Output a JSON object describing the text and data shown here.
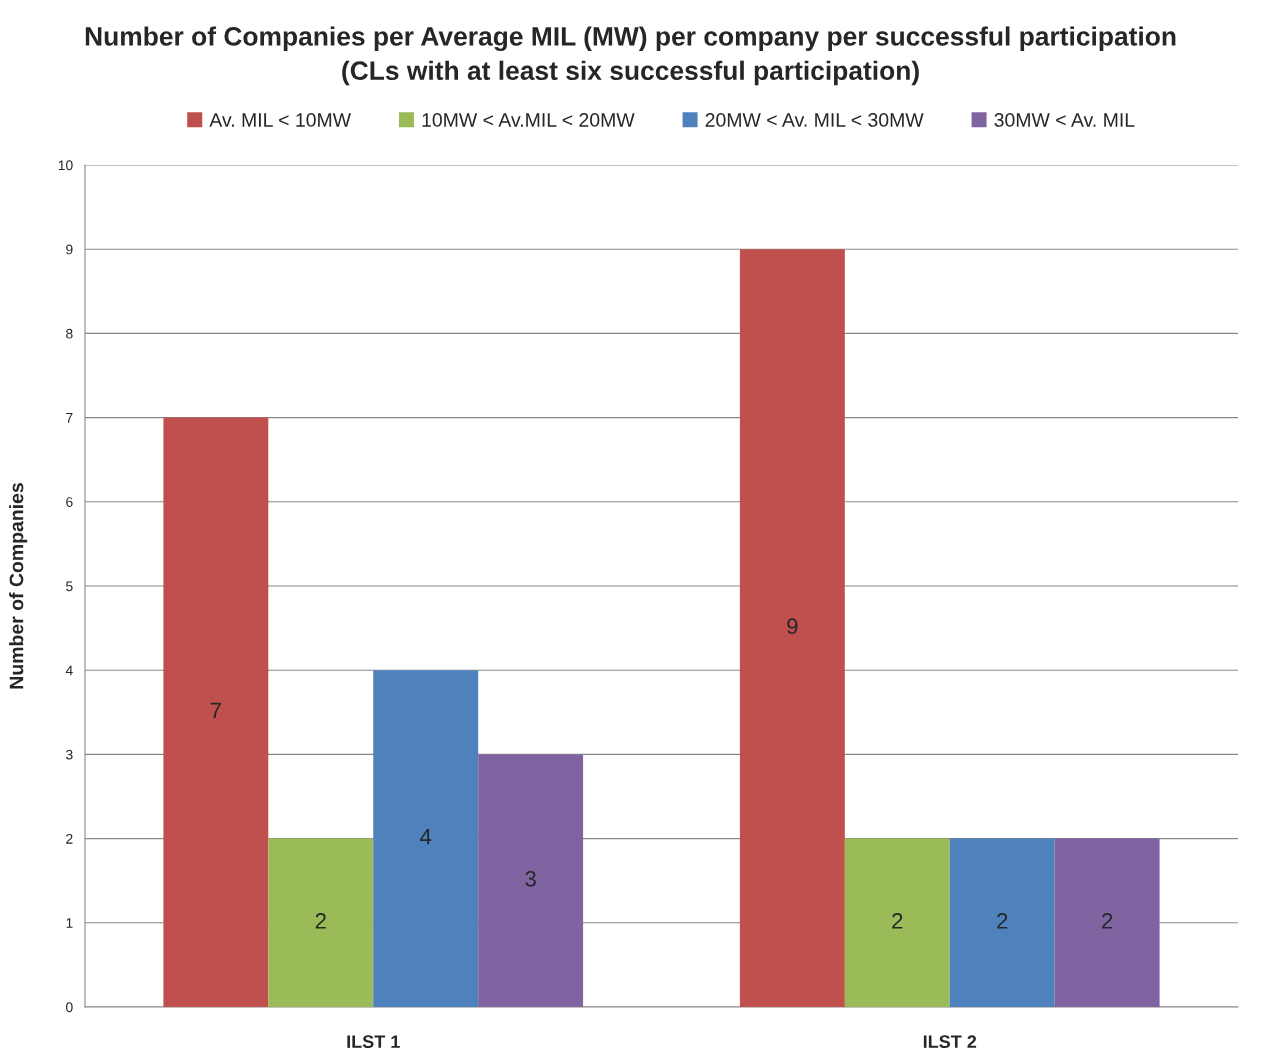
{
  "chart_data": {
    "type": "bar",
    "title": "Number of Companies per Average MIL (MW) per company per successful participation\n(CLs with at least six successful participation)",
    "ylabel": "Number of Companies",
    "categories": [
      "ILST 1",
      "ILST 2"
    ],
    "series": [
      {
        "name": "Av. MIL < 10MW",
        "color": "#c0504d",
        "values": [
          7,
          9
        ]
      },
      {
        "name": "10MW < Av.MIL < 20MW",
        "color": "#9bbb59",
        "values": [
          2,
          2
        ]
      },
      {
        "name": "20MW < Av. MIL < 30MW",
        "color": "#4f81bd",
        "values": [
          4,
          2
        ]
      },
      {
        "name": "30MW < Av. MIL",
        "color": "#8064a2",
        "values": [
          3,
          2
        ]
      }
    ],
    "ylim": [
      0,
      10
    ],
    "yticks": [
      0,
      1,
      2,
      3,
      4,
      5,
      6,
      7,
      8,
      9,
      10
    ],
    "grid": "y",
    "legend": "top",
    "data_labels": true
  }
}
